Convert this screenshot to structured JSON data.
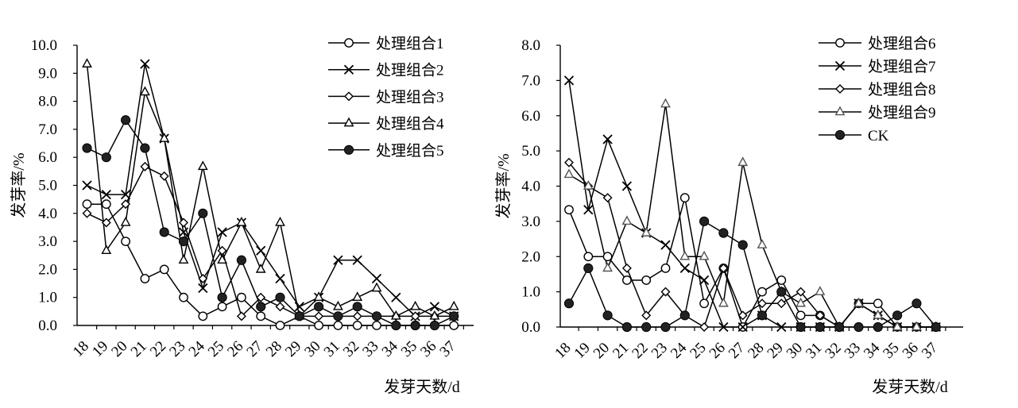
{
  "charts": [
    {
      "ylabel": "发芽率/%",
      "xlabel": "发芽天数/d",
      "chart_data": {
        "type": "line",
        "x": [
          18,
          19,
          20,
          21,
          22,
          23,
          24,
          25,
          26,
          27,
          28,
          29,
          30,
          31,
          32,
          33,
          34,
          35,
          36,
          37
        ],
        "ylim": [
          0,
          10
        ],
        "yticks": [
          "0.0",
          "1.0",
          "2.0",
          "3.0",
          "4.0",
          "5.0",
          "6.0",
          "7.0",
          "8.0",
          "9.0",
          "10.0"
        ],
        "legend_position": "top-right",
        "series": [
          {
            "name": "处理组合1",
            "marker": "open-circle",
            "values": [
              4.33,
              4.33,
              3.0,
              1.67,
              2.0,
              1.0,
              0.33,
              0.67,
              1.0,
              0.33,
              0.0,
              0.33,
              0.0,
              0.0,
              0.0,
              0.0,
              0.0,
              0.0,
              0.0,
              0.0
            ]
          },
          {
            "name": "处理组合2",
            "marker": "cross",
            "values": [
              5.0,
              4.67,
              4.67,
              9.33,
              6.67,
              3.33,
              1.33,
              3.33,
              3.67,
              2.67,
              1.67,
              0.67,
              1.0,
              2.33,
              2.33,
              1.67,
              1.0,
              0.33,
              0.67,
              0.33
            ]
          },
          {
            "name": "处理组合3",
            "marker": "open-diamond",
            "values": [
              4.0,
              3.67,
              4.33,
              5.67,
              5.33,
              3.67,
              1.67,
              2.67,
              0.33,
              1.0,
              0.67,
              0.33,
              0.33,
              0.33,
              0.33,
              0.33,
              0.33,
              0.33,
              0.33,
              0.33
            ]
          },
          {
            "name": "处理组合4",
            "marker": "open-triangle",
            "values": [
              9.33,
              2.67,
              3.67,
              8.33,
              6.67,
              2.33,
              5.67,
              2.33,
              3.67,
              2.0,
              3.67,
              0.33,
              1.0,
              0.67,
              1.0,
              1.33,
              0.33,
              0.67,
              0.33,
              0.67
            ]
          },
          {
            "name": "处理组合5",
            "marker": "filled-circle",
            "values": [
              6.33,
              6.0,
              7.33,
              6.33,
              3.33,
              3.0,
              4.0,
              1.0,
              2.33,
              0.67,
              1.0,
              0.33,
              0.67,
              0.33,
              0.67,
              0.33,
              0.0,
              0.0,
              0.0,
              0.33
            ]
          }
        ]
      }
    },
    {
      "ylabel": "发芽率/%",
      "xlabel": "发芽天数/d",
      "chart_data": {
        "type": "line",
        "x": [
          18,
          19,
          20,
          21,
          22,
          23,
          24,
          25,
          26,
          27,
          28,
          29,
          30,
          31,
          32,
          33,
          34,
          35,
          36,
          37
        ],
        "ylim": [
          0,
          8
        ],
        "yticks": [
          "0.0",
          "1.0",
          "2.0",
          "3.0",
          "4.0",
          "5.0",
          "6.0",
          "7.0",
          "8.0"
        ],
        "legend_position": "top-right",
        "series": [
          {
            "name": "处理组合6",
            "marker": "open-circle",
            "values": [
              3.33,
              2.0,
              2.0,
              1.33,
              1.33,
              1.67,
              3.67,
              0.67,
              1.67,
              0.0,
              1.0,
              1.33,
              0.33,
              0.33,
              0.0,
              0.67,
              0.67,
              0.0,
              0.0,
              0.0
            ]
          },
          {
            "name": "处理组合7",
            "marker": "cross",
            "values": [
              7.0,
              3.33,
              5.33,
              4.0,
              2.67,
              2.33,
              1.67,
              1.33,
              0.0,
              0.0,
              0.33,
              0.0,
              0.0,
              0.0,
              0.0,
              0.67,
              0.33,
              0.0,
              0.0,
              0.0
            ]
          },
          {
            "name": "处理组合8",
            "marker": "open-diamond",
            "values": [
              4.67,
              4.0,
              3.67,
              1.67,
              0.33,
              1.0,
              0.33,
              0.0,
              1.67,
              0.33,
              0.67,
              0.67,
              1.0,
              0.33,
              0.0,
              0.67,
              0.33,
              0.0,
              0.0,
              0.0
            ]
          },
          {
            "name": "处理组合9",
            "marker": "gray-triangle",
            "values": [
              4.33,
              4.0,
              1.67,
              3.0,
              2.67,
              6.33,
              2.0,
              2.0,
              0.67,
              4.67,
              2.33,
              1.0,
              0.67,
              1.0,
              0.0,
              0.67,
              0.33,
              0.0,
              0.0,
              0.0
            ]
          },
          {
            "name": "CK",
            "marker": "filled-circle",
            "values": [
              0.67,
              1.67,
              0.33,
              0.0,
              0.0,
              0.0,
              0.33,
              3.0,
              2.67,
              2.33,
              0.33,
              1.0,
              0.0,
              0.0,
              0.0,
              0.0,
              0.0,
              0.33,
              0.67,
              0.0
            ]
          }
        ]
      }
    }
  ]
}
